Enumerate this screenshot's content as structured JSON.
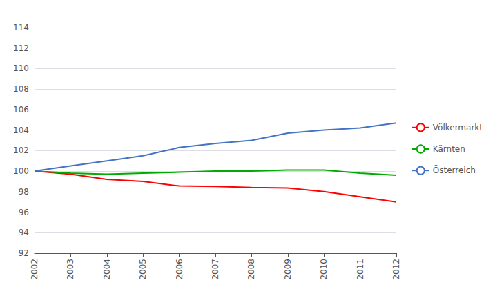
{
  "chart_data": {
    "type": "line",
    "x": [
      2002,
      2003,
      2004,
      2005,
      2006,
      2007,
      2008,
      2009,
      2010,
      2011,
      2012
    ],
    "series": [
      {
        "name": "Völkermarkt",
        "color": "#ff0000",
        "values": [
          100.0,
          99.7,
          99.2,
          99.0,
          98.55,
          98.5,
          98.4,
          98.35,
          98.0,
          97.5,
          97.0
        ]
      },
      {
        "name": "Kärnten",
        "color": "#00aa00",
        "values": [
          100.0,
          99.8,
          99.7,
          99.8,
          99.9,
          100.0,
          100.0,
          100.1,
          100.1,
          99.8,
          99.6
        ]
      },
      {
        "name": "Österreich",
        "color": "#4472c4",
        "values": [
          100.0,
          100.5,
          101.0,
          101.5,
          102.3,
          102.7,
          103.0,
          103.7,
          104.0,
          104.2,
          104.7
        ]
      }
    ],
    "xlim": [
      2002,
      2012
    ],
    "xticks": [
      2002,
      2003,
      2004,
      2005,
      2006,
      2007,
      2008,
      2009,
      2010,
      2011,
      2012
    ],
    "ylim": [
      92,
      115
    ],
    "yticks": [
      92,
      94,
      96,
      98,
      100,
      102,
      104,
      106,
      108,
      110,
      112,
      114
    ],
    "grid": true,
    "legend": "right"
  }
}
